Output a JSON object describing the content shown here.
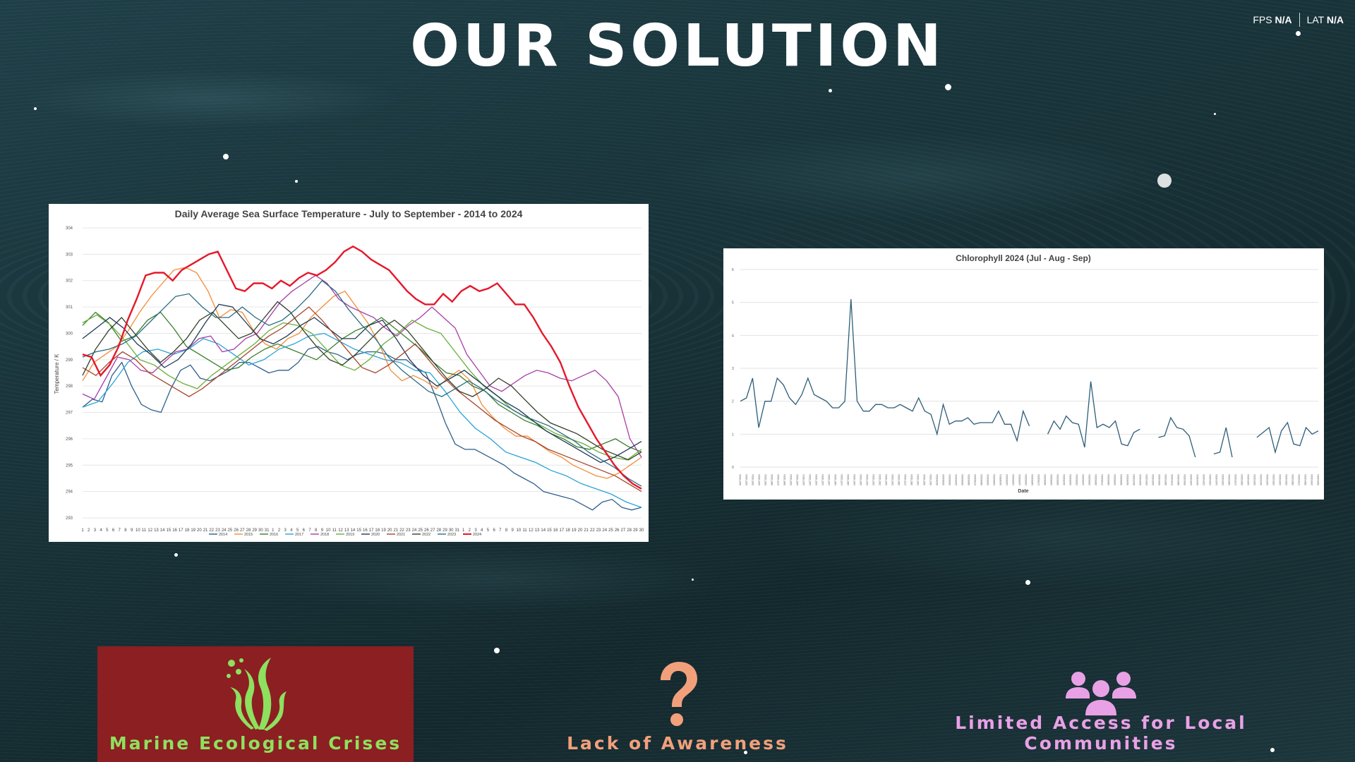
{
  "slide": {
    "title": "OUR SOLUTION"
  },
  "hud": {
    "fps_label": "FPS",
    "fps_value": "N/A",
    "lat_label": "LAT",
    "lat_value": "N/A"
  },
  "colors": {
    "crisis_green": "#8ee05f",
    "awareness_orange": "#f2a07b",
    "community_pink": "#e9a1e6",
    "crisis_bg": "#8b1f22"
  },
  "tiles": [
    {
      "label": "Marine Ecological Crises",
      "icon": "seaweed-icon"
    },
    {
      "label": "Lack of Awareness",
      "icon": "question-mark-icon"
    },
    {
      "label": "Limited Access for Local Communities",
      "icon": "people-group-icon"
    }
  ],
  "chart_data": [
    {
      "type": "line",
      "title": "Daily Average Sea Surface Temperature - July to September - 2014 to 2024",
      "ylabel": "Temperature / K",
      "xlabel": "",
      "ylim": [
        293,
        304
      ],
      "yticks": [
        293,
        294,
        295,
        296,
        297,
        298,
        299,
        300,
        301,
        302,
        303,
        304
      ],
      "x_day_labels": "1-31 (Jul), 1-31 (Aug), 1-30 (Sep)",
      "legend": [
        "2014",
        "2015",
        "2016",
        "2017",
        "2018",
        "2019",
        "2020",
        "2021",
        "2022",
        "2023",
        "2024"
      ],
      "legend_position": "bottom",
      "series": [
        {
          "name": "2014",
          "color": "#2e5f8a",
          "values": [
            297.2,
            297.5,
            297.4,
            298.4,
            298.9,
            298.0,
            297.3,
            297.1,
            297.0,
            297.9,
            298.6,
            298.8,
            298.3,
            298.2,
            298.4,
            298.6,
            298.9,
            298.9,
            298.7,
            298.5,
            298.6,
            298.6,
            298.9,
            299.4,
            299.5,
            299.3,
            299.2,
            299.0,
            299.2,
            299.3,
            299.3,
            299.2,
            299.0,
            299.0,
            298.7,
            298.5,
            297.6,
            296.6,
            295.8,
            295.6,
            295.6,
            295.4,
            295.2,
            295.0,
            294.7,
            294.5,
            294.3,
            294.0,
            293.9,
            293.8,
            293.7,
            293.5,
            293.3,
            293.6,
            293.7,
            293.4,
            293.3,
            293.4
          ]
        },
        {
          "name": "2015",
          "color": "#f28c38",
          "values": [
            298.2,
            298.9,
            299.2,
            299.5,
            300.1,
            300.8,
            301.4,
            301.9,
            302.4,
            302.5,
            302.3,
            301.6,
            300.6,
            300.9,
            300.8,
            300.1,
            299.6,
            299.4,
            299.8,
            300.0,
            300.6,
            301.0,
            301.4,
            301.6,
            301.0,
            300.4,
            299.6,
            298.6,
            298.2,
            298.4,
            298.2,
            297.9,
            298.3,
            298.6,
            298.2,
            297.3,
            296.8,
            296.4,
            296.1,
            296.1,
            295.8,
            295.5,
            295.3,
            295.0,
            294.8,
            294.6,
            294.5,
            294.7,
            295.0,
            295.3
          ]
        },
        {
          "name": "2016",
          "color": "#3a7d2e",
          "values": [
            300.3,
            300.8,
            300.4,
            299.7,
            299.9,
            300.5,
            300.8,
            300.2,
            299.5,
            299.2,
            298.9,
            298.6,
            298.7,
            299.1,
            299.4,
            299.6,
            299.4,
            299.2,
            299.0,
            299.4,
            299.8,
            300.1,
            300.3,
            300.6,
            300.2,
            299.8,
            299.4,
            298.9,
            298.5,
            298.4,
            298.0,
            297.8,
            297.3,
            297.0,
            296.7,
            296.5,
            296.2,
            296.0,
            295.7,
            295.6,
            295.8,
            296.0,
            295.7,
            295.5
          ]
        },
        {
          "name": "2017",
          "color": "#29a3d6",
          "values": [
            297.2,
            297.4,
            298.1,
            298.9,
            299.3,
            299.4,
            299.2,
            299.4,
            299.8,
            299.6,
            299.2,
            298.8,
            299.0,
            299.4,
            299.6,
            299.9,
            300.0,
            299.7,
            299.4,
            299.2,
            299.0,
            298.9,
            298.6,
            298.5,
            297.8,
            297.0,
            296.4,
            296.0,
            295.5,
            295.3,
            295.1,
            294.8,
            294.6,
            294.3,
            294.1,
            293.9,
            293.6,
            293.4
          ]
        },
        {
          "name": "2018",
          "color": "#a63ea6",
          "values": [
            297.7,
            297.5,
            298.3,
            299.1,
            299.0,
            298.6,
            298.5,
            298.9,
            299.3,
            299.4,
            299.8,
            299.9,
            299.3,
            299.4,
            299.8,
            300.0,
            300.6,
            301.2,
            301.6,
            301.9,
            302.2,
            301.9,
            301.3,
            301.0,
            300.8,
            300.6,
            300.2,
            299.9,
            300.3,
            300.6,
            301.0,
            300.6,
            300.2,
            299.2,
            298.6,
            298.0,
            297.8,
            298.1,
            298.4,
            298.6,
            298.5,
            298.3,
            298.2,
            298.4,
            298.6,
            298.2,
            297.6,
            296.0,
            295.3
          ]
        },
        {
          "name": "2019",
          "color": "#6aae3a",
          "values": [
            300.4,
            300.7,
            300.3,
            299.7,
            299.0,
            298.8,
            298.4,
            298.1,
            297.9,
            298.4,
            298.8,
            299.2,
            299.6,
            300.1,
            300.4,
            300.3,
            300.0,
            299.4,
            298.8,
            298.6,
            299.0,
            299.6,
            300.0,
            300.5,
            300.2,
            300.0,
            299.3,
            298.6,
            298.0,
            297.6,
            297.1,
            296.8,
            296.5,
            296.2,
            296.0,
            295.8,
            295.5,
            295.3,
            295.2,
            295.6
          ]
        },
        {
          "name": "2020",
          "color": "#203a56",
          "values": [
            299.8,
            300.2,
            300.6,
            300.2,
            299.6,
            299.2,
            298.7,
            299.0,
            299.6,
            300.4,
            301.1,
            301.0,
            300.4,
            299.8,
            299.6,
            299.9,
            300.3,
            300.6,
            300.2,
            299.8,
            299.8,
            300.3,
            300.5,
            299.8,
            299.0,
            298.4,
            298.0,
            298.3,
            298.6,
            298.2,
            297.8,
            297.4,
            297.1,
            296.7,
            296.3,
            296.0,
            295.7,
            295.4,
            295.1,
            295.3,
            295.6,
            295.9
          ]
        },
        {
          "name": "2021",
          "color": "#a6442a",
          "values": [
            298.7,
            298.4,
            298.9,
            299.3,
            299.0,
            298.5,
            298.2,
            297.9,
            297.6,
            297.9,
            298.3,
            298.7,
            299.1,
            299.5,
            299.9,
            300.2,
            300.6,
            301.0,
            300.5,
            299.9,
            299.3,
            298.7,
            298.5,
            298.8,
            299.2,
            299.6,
            299.0,
            298.4,
            297.9,
            297.5,
            297.1,
            296.7,
            296.4,
            296.1,
            295.9,
            295.6,
            295.4,
            295.2,
            295.0,
            294.8,
            294.6,
            294.3,
            294.0
          ]
        },
        {
          "name": "2022",
          "color": "#33402a",
          "values": [
            298.4,
            299.4,
            300.1,
            300.6,
            300.0,
            299.4,
            298.9,
            299.3,
            299.8,
            300.5,
            300.8,
            300.3,
            299.8,
            300.0,
            300.6,
            301.2,
            300.8,
            300.1,
            299.5,
            299.0,
            298.8,
            299.2,
            299.7,
            300.2,
            300.5,
            300.1,
            299.5,
            298.9,
            298.3,
            297.8,
            297.6,
            297.9,
            298.3,
            298.0,
            297.5,
            297.0,
            296.6,
            296.4,
            296.2,
            295.9,
            295.6,
            295.4,
            295.2,
            295.5
          ]
        },
        {
          "name": "2023",
          "color": "#2a6b84",
          "values": [
            299.1,
            299.3,
            299.4,
            299.6,
            299.9,
            300.4,
            300.9,
            301.4,
            301.5,
            301.0,
            300.6,
            300.6,
            301.0,
            300.6,
            300.3,
            300.5,
            300.9,
            301.4,
            302.0,
            301.6,
            300.9,
            300.3,
            299.8,
            299.1,
            298.6,
            298.2,
            297.8,
            297.6,
            297.9,
            298.2,
            297.9,
            297.5,
            297.2,
            296.9,
            296.7,
            296.5,
            296.2,
            295.9,
            295.5,
            295.2,
            294.9,
            294.5,
            294.2
          ]
        },
        {
          "name": "2024",
          "color": "#e5182a",
          "values": [
            299.2,
            299.1,
            298.4,
            298.8,
            299.5,
            300.5,
            301.3,
            302.2,
            302.3,
            302.3,
            302.0,
            302.4,
            302.6,
            302.8,
            303.0,
            303.1,
            302.4,
            301.7,
            301.6,
            301.9,
            301.9,
            301.7,
            302.0,
            301.8,
            302.1,
            302.3,
            302.2,
            302.4,
            302.7,
            303.1,
            303.3,
            303.1,
            302.8,
            302.6,
            302.4,
            302.0,
            301.6,
            301.3,
            301.1,
            301.1,
            301.5,
            301.2,
            301.6,
            301.8,
            301.6,
            301.7,
            301.9,
            301.5,
            301.1,
            301.1,
            300.6,
            300.0,
            299.5,
            298.9,
            298.0,
            297.2,
            296.6,
            296.0,
            295.5,
            295.0,
            294.6,
            294.3,
            294.1
          ]
        }
      ]
    },
    {
      "type": "line",
      "title": "Chlorophyll 2024 (Jul - Aug - Sep)",
      "xlabel": "Date",
      "ylabel": "",
      "ylim": [
        0,
        6
      ],
      "yticks": [
        0,
        1,
        2,
        3,
        4,
        5,
        6
      ],
      "x_range": "01/07/2024 - 30/09/2024",
      "series": [
        {
          "name": "",
          "color": "#2d5d78",
          "values": [
            2.0,
            2.1,
            2.7,
            1.2,
            2.0,
            2.0,
            2.7,
            2.5,
            2.1,
            1.9,
            2.2,
            2.7,
            2.2,
            2.1,
            2.0,
            1.8,
            1.8,
            2.0,
            5.1,
            2.0,
            1.7,
            1.7,
            1.9,
            1.9,
            1.8,
            1.8,
            1.9,
            1.8,
            1.7,
            2.1,
            1.7,
            1.6,
            1.0,
            1.9,
            1.3,
            1.4,
            1.4,
            1.5,
            1.3,
            1.35,
            1.35,
            1.35,
            1.7,
            1.3,
            1.3,
            0.8,
            1.7,
            1.25,
            null,
            null,
            1.0,
            1.4,
            1.15,
            1.55,
            1.35,
            1.3,
            0.6,
            2.6,
            1.2,
            1.3,
            1.2,
            1.4,
            0.7,
            0.65,
            1.05,
            1.15,
            null,
            null,
            0.9,
            0.95,
            1.5,
            1.2,
            1.15,
            0.95,
            0.3,
            null,
            null,
            0.4,
            0.45,
            1.2,
            0.3,
            null,
            null,
            null,
            0.9,
            1.05,
            1.2,
            0.45,
            1.1,
            1.35,
            0.7,
            0.65,
            1.2,
            1.0,
            1.1
          ]
        }
      ]
    }
  ]
}
